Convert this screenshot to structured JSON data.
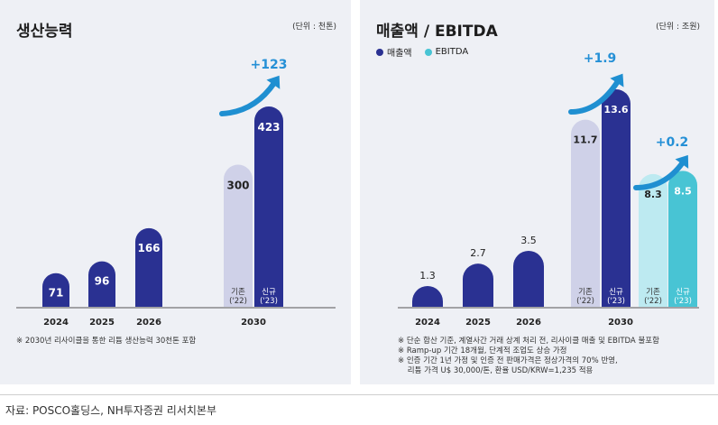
{
  "colors": {
    "navy": "#2a3192",
    "lavender": "#cfd1e8",
    "teal": "#48c4d4",
    "light_teal": "#bdeaf1",
    "arrow": "#1f8fd1",
    "growth_text": "#2590d6"
  },
  "left_panel": {
    "title": "생산능력",
    "unit": "(단위 : 천톤)",
    "note": "※ 2030년 리사이클을 통한 리튬 생산능력 30천톤 포함",
    "growth_label": "+123"
  },
  "right_panel": {
    "title": "매출액 / EBITDA",
    "unit": "(단위 : 조원)",
    "legend": [
      "매출액",
      "EBITDA"
    ],
    "growth_labels": [
      "+1.9",
      "+0.2"
    ],
    "notes": [
      "※ 단순 합산 기준, 계열사간 거래 상계 처리 전, 리사이클 매출 및 EBITDA 불포함",
      "※ Ramp-up 기간 18개월, 단계적 조업도 상승 가정",
      "※ 인증 기간 1년 가정 및 인증 전 판매가격은 정상가격의 70% 반영,",
      "    리튬 가격 U$ 30,000/톤, 환율 USD/KRW=1,235 적용"
    ]
  },
  "chart_data": [
    {
      "type": "bar",
      "title": "생산능력",
      "unit": "천톤",
      "categories": [
        "2024",
        "2025",
        "2026",
        "2030"
      ],
      "series": [
        {
          "values": [
            71,
            96,
            166,
            300
          ],
          "bar_labels": [
            "",
            "",
            "",
            "기존\n('22)"
          ]
        },
        {
          "values": [
            null,
            null,
            null,
            423
          ],
          "bar_labels": [
            "",
            "",
            "",
            "신규\n('23)"
          ]
        }
      ],
      "annotations": [
        "+123"
      ]
    },
    {
      "type": "bar",
      "title": "매출액 / EBITDA",
      "unit": "조원",
      "categories": [
        "2024",
        "2025",
        "2026",
        "2030"
      ],
      "series": [
        {
          "name": "매출액",
          "values": [
            1.3,
            2.7,
            3.5,
            11.7
          ],
          "bar_labels": [
            "",
            "",
            "",
            "기존\n('22)"
          ]
        },
        {
          "name": "매출액",
          "values": [
            null,
            null,
            null,
            13.6
          ],
          "bar_labels": [
            "",
            "",
            "",
            "신규\n('23)"
          ]
        },
        {
          "name": "EBITDA",
          "values": [
            null,
            null,
            null,
            8.3
          ],
          "bar_labels": [
            "",
            "",
            "",
            "기존\n('22)"
          ]
        },
        {
          "name": "EBITDA",
          "values": [
            null,
            null,
            null,
            8.5
          ],
          "bar_labels": [
            "",
            "",
            "",
            "신규\n('23)"
          ]
        }
      ],
      "annotations": [
        "+1.9",
        "+0.2"
      ]
    }
  ],
  "source": "자료: POSCO홀딩스, NH투자증권 리서치본부"
}
